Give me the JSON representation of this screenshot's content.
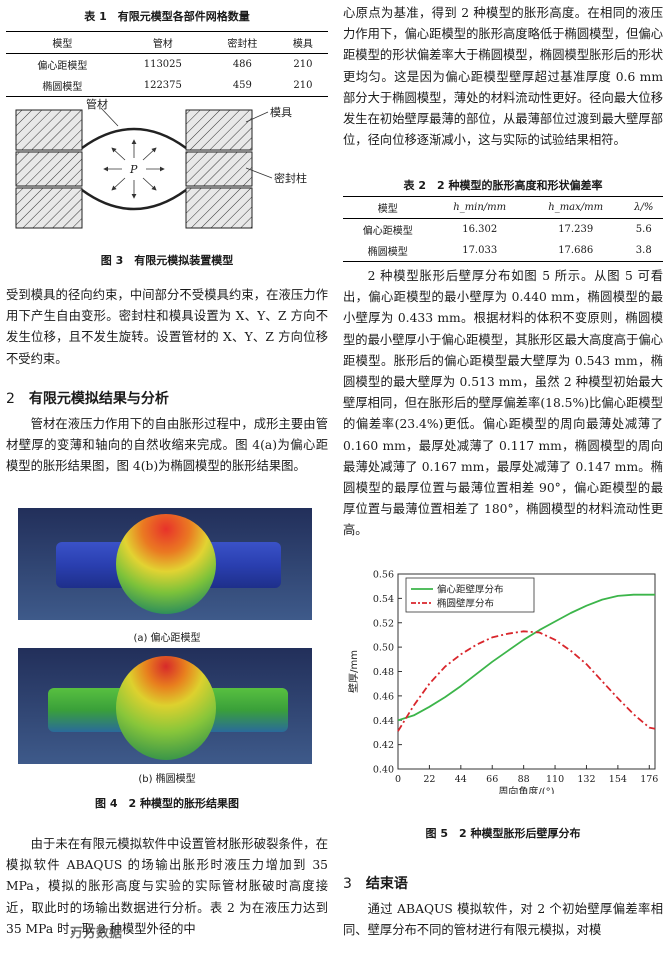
{
  "table1": {
    "caption": "表 1　有限元模型各部件网格数量",
    "headers": [
      "模型",
      "管材",
      "密封柱",
      "模具"
    ],
    "rows": [
      [
        "偏心距模型",
        "113025",
        "486",
        "210"
      ],
      [
        "椭圆模型",
        "122375",
        "459",
        "210"
      ]
    ]
  },
  "fig3": {
    "labels": {
      "tube": "管材",
      "die": "模具",
      "pressure": "P",
      "seal": "密封柱"
    },
    "caption": "图 3　有限元模拟装置模型"
  },
  "left_para1": "受到模具的径向约束，中间部分不受模具约束，在液压力作用下产生自由变形。密封柱和模具设置为 X、Y、Z 方向不发生位移，且不发生旋转。设置管材的 X、Y、Z 方向位移不受约束。",
  "section2": {
    "number": "2",
    "title": "有限元模拟结果与分析"
  },
  "left_para2": "管材在液压力作用下的自由胀形过程中，成形主要由管材壁厚的变薄和轴向的自然收缩来完成。图 4(a)为偏心距模型的胀形结果图，图 4(b)为椭圆模型的胀形结果图。",
  "fig4": {
    "sub_a": "(a) 偏心距模型",
    "sub_b": "(b) 椭圆模型",
    "caption": "图 4　2 种模型的胀形结果图"
  },
  "left_para3": "由于未在有限元模拟软件中设置管材胀形破裂条件，在模拟软件 ABAQUS 的场输出胀形时液压力增加到 35 MPa，模拟的胀形高度与实验的实际管材胀破时高度接近，取此时的场输出数据进行分析。表 2 为在液压力达到 35 MPa 时，取 2 种模型外径的中",
  "watermark": "万方数据",
  "right_para1": "心原点为基准，得到 2 种模型的胀形高度。在相同的液压力作用下，偏心距模型的胀形高度略低于椭圆模型，但偏心距模型的形状偏差率大于椭圆模型，椭圆模型胀形后的形状更均匀。这是因为偏心距模型壁厚超过基准厚度 0.6 mm 部分大于椭圆模型，薄处的材料流动性更好。径向最大位移发生在初始壁厚最薄的部位，从最薄部位过渡到最大壁厚部位，径向位移逐渐减小，这与实际的试验结果相符。",
  "table2": {
    "caption": "表 2　2 种模型的胀形高度和形状偏差率",
    "headers": [
      "模型",
      "h_min/mm",
      "h_max/mm",
      "λ/%"
    ],
    "rows": [
      [
        "偏心距模型",
        "16.302",
        "17.239",
        "5.6"
      ],
      [
        "椭圆模型",
        "17.033",
        "17.686",
        "3.8"
      ]
    ]
  },
  "right_para2": "2 种模型胀形后壁厚分布如图 5 所示。从图 5 可看出，偏心距模型的最小壁厚为 0.440 mm，椭圆模型的最小壁厚为 0.433 mm。根据材料的体积不变原则，椭圆模型的最小壁厚小于偏心距模型，其胀形区最大高度高于偏心距模型。胀形后的偏心距模型最大壁厚为 0.543 mm，椭圆模型的最大壁厚为 0.513 mm，虽然 2 种模型初始最大壁厚相同，但在胀形后的壁厚偏差率(18.5%)比偏心距模型的偏差率(23.4%)更低。偏心距模型的周向最薄处减薄了 0.160 mm，最厚处减薄了 0.117 mm，椭圆模型的周向最薄处减薄了 0.167 mm，最厚处减薄了 0.147 mm。椭圆模型的最厚位置与最薄位置相差 90°，偏心距模型的最厚位置与最薄位置相差了 180°，椭圆模型的材料流动性更高。",
  "fig5_caption": "图 5　2 种模型胀形后壁厚分布",
  "section3": {
    "number": "3",
    "title": "结束语"
  },
  "right_para3": "通过 ABAQUS 模拟软件，对 2 个初始壁厚偏差率相同、壁厚分布不同的管材进行有限元模拟，对模",
  "chart_data": {
    "type": "line",
    "xlabel": "周向角度/(°)",
    "ylabel": "壁厚/mm",
    "xlim": [
      0,
      180
    ],
    "ylim": [
      0.4,
      0.56
    ],
    "xticks": [
      0,
      22,
      44,
      66,
      88,
      110,
      132,
      154,
      176
    ],
    "yticks": [
      0.4,
      0.42,
      0.44,
      0.46,
      0.48,
      0.5,
      0.52,
      0.54,
      0.56
    ],
    "legend_position": "top-left",
    "grid": false,
    "series": [
      {
        "name": "偏心距壁厚分布",
        "color": "#3cb54a",
        "dash": "solid",
        "x": [
          0,
          11,
          22,
          33,
          44,
          55,
          66,
          77,
          88,
          99,
          110,
          121,
          132,
          143,
          154,
          165,
          176,
          180
        ],
        "y": [
          0.44,
          0.444,
          0.451,
          0.459,
          0.468,
          0.478,
          0.488,
          0.497,
          0.506,
          0.514,
          0.521,
          0.528,
          0.534,
          0.539,
          0.542,
          0.543,
          0.543,
          0.543
        ]
      },
      {
        "name": "椭圆壁厚分布",
        "color": "#d9262c",
        "dash": "dashdot",
        "x": [
          0,
          11,
          22,
          33,
          44,
          55,
          66,
          77,
          88,
          99,
          110,
          121,
          132,
          143,
          154,
          165,
          176,
          180
        ],
        "y": [
          0.431,
          0.452,
          0.47,
          0.484,
          0.494,
          0.502,
          0.508,
          0.511,
          0.513,
          0.512,
          0.506,
          0.497,
          0.486,
          0.472,
          0.458,
          0.445,
          0.434,
          0.433
        ]
      }
    ]
  }
}
